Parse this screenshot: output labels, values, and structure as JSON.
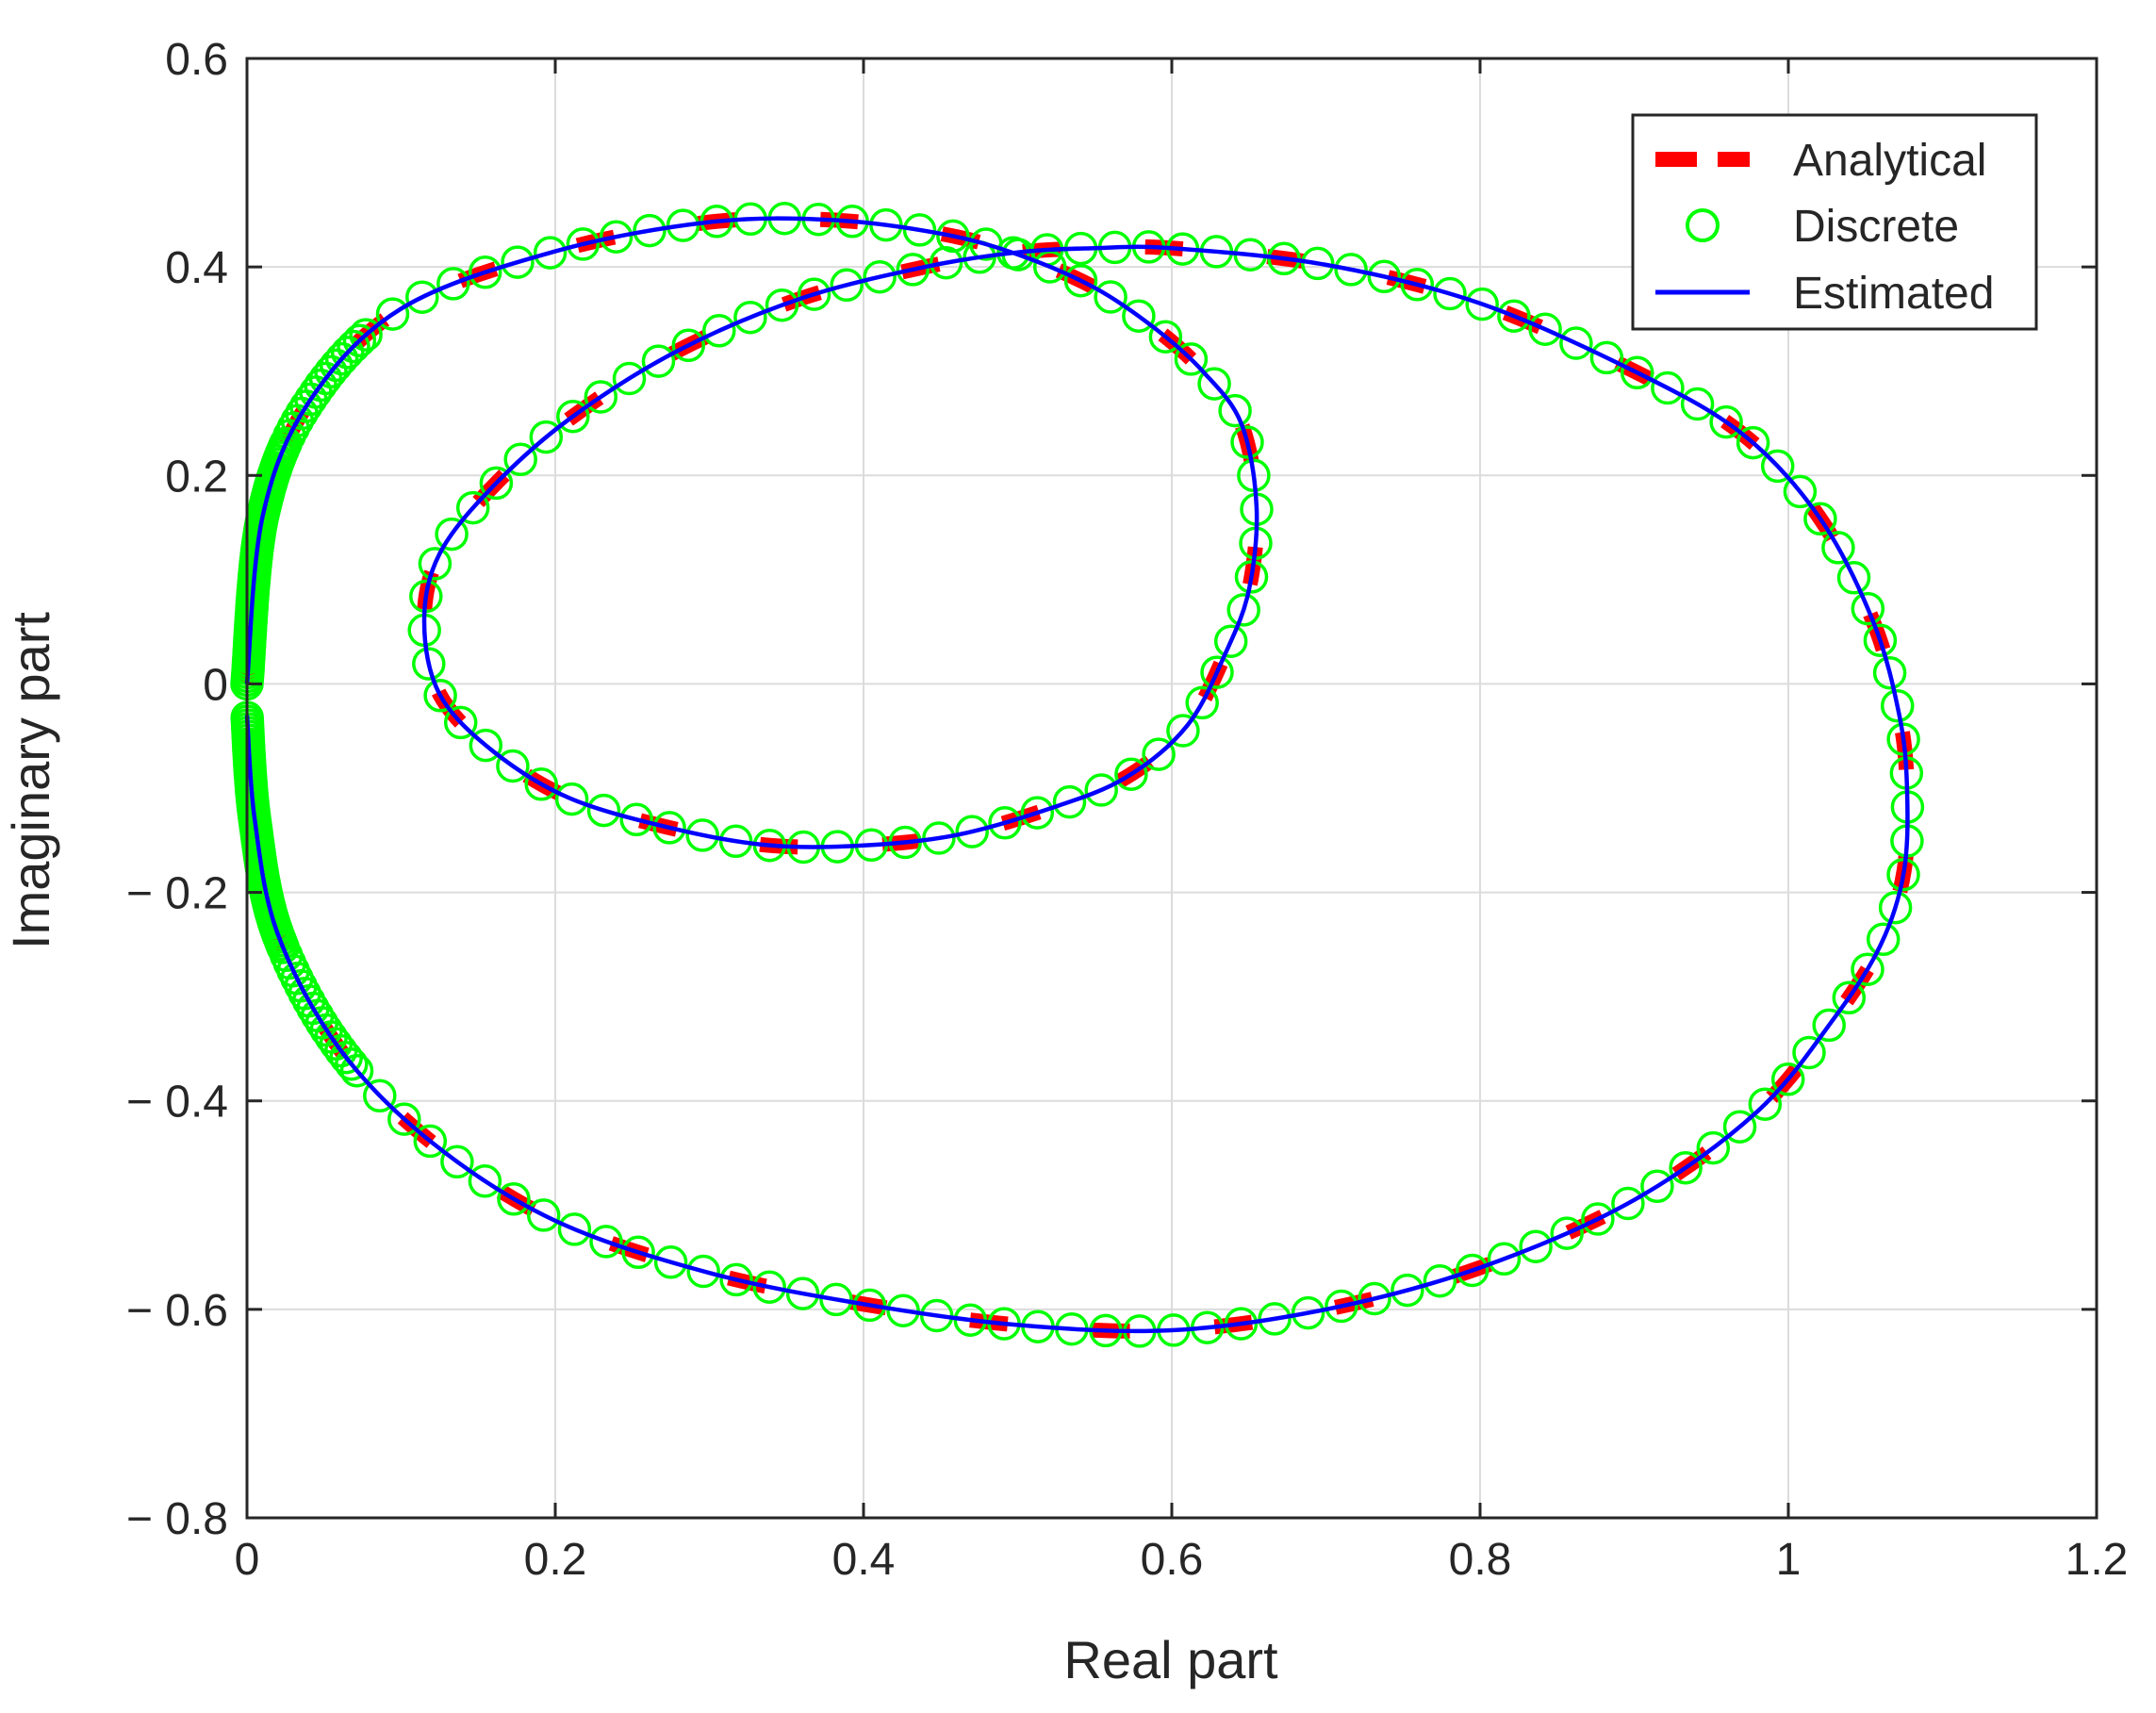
{
  "chart_data": {
    "type": "line",
    "title": "",
    "xlabel": "Real part",
    "ylabel": "Imaginary part",
    "xlim": [
      0,
      1.2
    ],
    "ylim": [
      -0.8,
      0.6
    ],
    "x_ticks": [
      0,
      0.2,
      0.4,
      0.6,
      0.8,
      1,
      1.2
    ],
    "x_tick_labels": [
      "0",
      "0.2",
      "0.4",
      "0.6",
      "0.8",
      "1",
      "1.2"
    ],
    "y_ticks": [
      0.6,
      0.4,
      0.2,
      0,
      -0.2,
      -0.4,
      -0.6,
      -0.8
    ],
    "y_tick_labels": [
      "0.6",
      "0.4",
      "0.2",
      "0",
      "− 0.2",
      "− 0.4",
      "− 0.6",
      "− 0.8"
    ],
    "grid": true,
    "legend_position": "top-right",
    "series": [
      {
        "name": "Analytical",
        "style": "dashed",
        "color": "#ff0000",
        "x": [
          0.0,
          0.01,
          0.04,
          0.1,
          0.2,
          0.3,
          0.38,
          0.45,
          0.5,
          0.55,
          0.59,
          0.62,
          0.645,
          0.655,
          0.65,
          0.635,
          0.61,
          0.57,
          0.52,
          0.46,
          0.4,
          0.34,
          0.28,
          0.21,
          0.16,
          0.125,
          0.115,
          0.125,
          0.16,
          0.21,
          0.28,
          0.36,
          0.44,
          0.5,
          0.55,
          0.6,
          0.7,
          0.8,
          0.9,
          0.97,
          1.02,
          1.055,
          1.072,
          1.077,
          1.075,
          1.06,
          1.03,
          0.98,
          0.9,
          0.8,
          0.7,
          0.6,
          0.5,
          0.4,
          0.3,
          0.2,
          0.12,
          0.06,
          0.02,
          0.005,
          0.0
        ],
        "y": [
          0.0,
          0.16,
          0.27,
          0.36,
          0.415,
          0.443,
          0.445,
          0.432,
          0.412,
          0.38,
          0.34,
          0.3,
          0.25,
          0.17,
          0.09,
          0.03,
          -0.04,
          -0.09,
          -0.12,
          -0.145,
          -0.155,
          -0.155,
          -0.14,
          -0.11,
          -0.065,
          -0.01,
          0.06,
          0.125,
          0.19,
          0.255,
          0.32,
          0.37,
          0.4,
          0.414,
          0.418,
          0.418,
          0.402,
          0.365,
          0.3,
          0.24,
          0.16,
          0.06,
          -0.03,
          -0.1,
          -0.18,
          -0.25,
          -0.32,
          -0.41,
          -0.495,
          -0.56,
          -0.6,
          -0.62,
          -0.615,
          -0.595,
          -0.565,
          -0.515,
          -0.44,
          -0.35,
          -0.24,
          -0.13,
          -0.03
        ]
      },
      {
        "name": "Discrete",
        "style": "circle-markers",
        "color": "#00ff00"
      },
      {
        "name": "Estimated",
        "style": "solid",
        "color": "#0000ff"
      }
    ]
  }
}
